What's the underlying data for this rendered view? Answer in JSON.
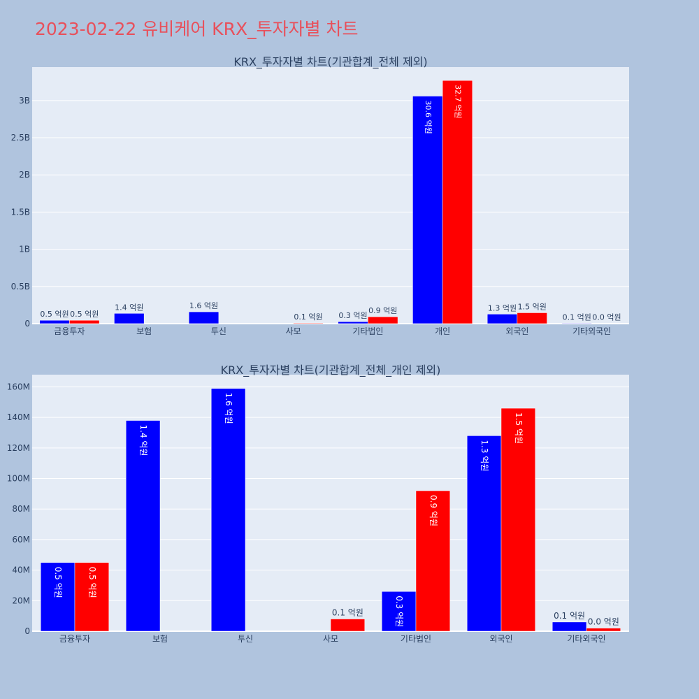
{
  "page": {
    "title": "2023-02-22 유비케어 KRX_투자자별 차트"
  },
  "colors": {
    "background": "#b0c4de",
    "plot_background": "#e5ecf6",
    "buy": "#0000ff",
    "sell": "#ff0000",
    "title": "#e8505b",
    "text": "#2a3f5f"
  },
  "chart_data": [
    {
      "type": "bar",
      "title": "KRX_투자자별 차트(기관합계_전체 제외)",
      "categories": [
        "금융투자",
        "보험",
        "투신",
        "사모",
        "기타법인",
        "개인",
        "외국인",
        "기타외국인"
      ],
      "series": [
        {
          "values": [
            45000000,
            138000000,
            159000000,
            null,
            26000000,
            3060000000,
            128000000,
            6000000
          ],
          "labels": [
            "0.5 억원",
            "1.4 억원",
            "1.6 억원",
            "",
            "0.3 억원",
            "30.6 억원",
            "1.3 억원",
            "0.1 억원"
          ]
        },
        {
          "values": [
            45000000,
            null,
            null,
            8000000,
            92000000,
            3270000000,
            146000000,
            2000000
          ],
          "labels": [
            "0.5 억원",
            "",
            "",
            "0.1 억원",
            "0.9 억원",
            "32.7 억원",
            "1.5 억원",
            "0.0 억원"
          ]
        }
      ],
      "ylim": [
        0,
        3450000000
      ],
      "yticks": [
        0,
        500000000,
        1000000000,
        1500000000,
        2000000000,
        2500000000,
        3000000000
      ],
      "ytick_labels": [
        "0",
        "0.5B",
        "1B",
        "1.5B",
        "2B",
        "2.5B",
        "3B"
      ],
      "grid": true
    },
    {
      "type": "bar",
      "title": "KRX_투자자별 차트(기관합계_전체_개인 제외)",
      "categories": [
        "금융투자",
        "보험",
        "투신",
        "사모",
        "기타법인",
        "외국인",
        "기타외국인"
      ],
      "series": [
        {
          "values": [
            45000000,
            138000000,
            159000000,
            null,
            26000000,
            128000000,
            6000000
          ],
          "labels": [
            "0.5 억원",
            "1.4 억원",
            "1.6 억원",
            "",
            "0.3 억원",
            "1.3 억원",
            "0.1 억원"
          ]
        },
        {
          "values": [
            45000000,
            null,
            null,
            8000000,
            92000000,
            146000000,
            2000000
          ],
          "labels": [
            "0.5 억원",
            "",
            "",
            "0.1 억원",
            "0.9 억원",
            "1.5 억원",
            "0.0 억원"
          ]
        }
      ],
      "ylim": [
        0,
        168000000
      ],
      "yticks": [
        0,
        20000000,
        40000000,
        60000000,
        80000000,
        100000000,
        120000000,
        140000000,
        160000000
      ],
      "ytick_labels": [
        "0",
        "20M",
        "40M",
        "60M",
        "80M",
        "100M",
        "120M",
        "140M",
        "160M"
      ],
      "grid": true
    }
  ]
}
